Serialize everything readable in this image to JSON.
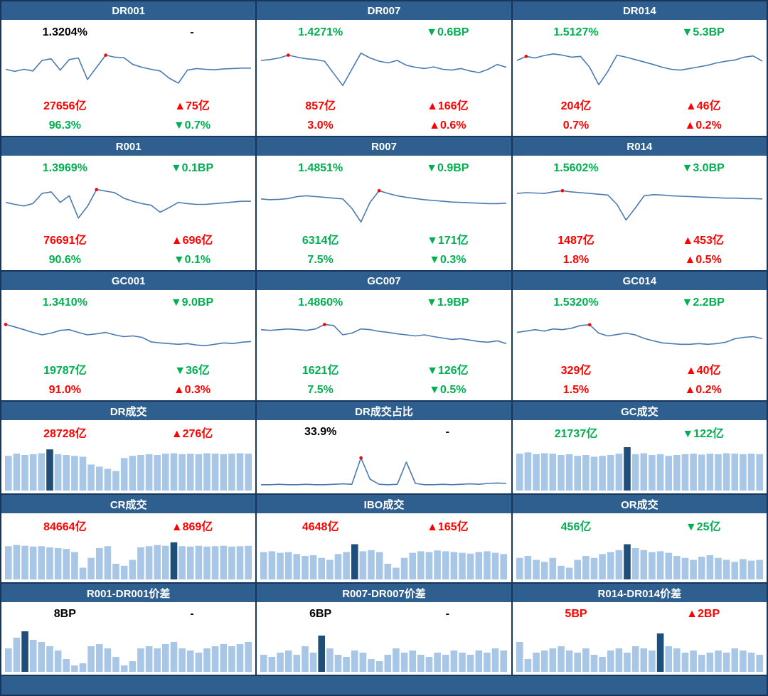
{
  "colors": {
    "header_bg": "#2E5F8F",
    "header_text": "#FFFFFF",
    "grid_line": "#16365C",
    "line": "#4A7AB0",
    "marker": "#FF0000",
    "bar": "#A8C6E6",
    "bar_highlight": "#1F4E79",
    "up_red": "#FF0000",
    "down_green": "#00B050"
  },
  "chart_data": [
    {
      "id": "dr001",
      "type": "line",
      "title": "DR001",
      "top_left": {
        "text": "1.3204%",
        "color": "black"
      },
      "top_right": {
        "text": "-",
        "color": "black"
      },
      "values": [
        0.5,
        0.45,
        0.5,
        0.46,
        0.72,
        0.76,
        0.48,
        0.74,
        0.78,
        0.25,
        0.55,
        0.85,
        0.8,
        0.79,
        0.62,
        0.55,
        0.5,
        0.46,
        0.28,
        0.16,
        0.48,
        0.52,
        0.5,
        0.49,
        0.51,
        0.52,
        0.53,
        0.53
      ],
      "marker_index": 11,
      "mid_left": {
        "text": "27656亿",
        "color": "red"
      },
      "mid_right": {
        "text": "▲75亿",
        "color": "red"
      },
      "bot_left": {
        "text": "96.3%",
        "color": "green"
      },
      "bot_right": {
        "text": "▼0.7%",
        "color": "green"
      }
    },
    {
      "id": "dr007",
      "type": "line",
      "title": "DR007",
      "top_left": {
        "text": "1.4271%",
        "color": "green"
      },
      "top_right": {
        "text": "▼0.6BP",
        "color": "green"
      },
      "values": [
        0.72,
        0.74,
        0.78,
        0.85,
        0.8,
        0.76,
        0.74,
        0.7,
        0.4,
        0.1,
        0.5,
        0.9,
        0.78,
        0.7,
        0.66,
        0.72,
        0.6,
        0.55,
        0.52,
        0.56,
        0.5,
        0.48,
        0.52,
        0.46,
        0.42,
        0.5,
        0.62,
        0.55
      ],
      "marker_index": 3,
      "mid_left": {
        "text": "857亿",
        "color": "red"
      },
      "mid_right": {
        "text": "▲166亿",
        "color": "red"
      },
      "bot_left": {
        "text": "3.0%",
        "color": "red"
      },
      "bot_right": {
        "text": "▲0.6%",
        "color": "red"
      }
    },
    {
      "id": "dr014",
      "type": "line",
      "title": "DR014",
      "top_left": {
        "text": "1.5127%",
        "color": "green"
      },
      "top_right": {
        "text": "▼5.3BP",
        "color": "green"
      },
      "values": [
        0.72,
        0.82,
        0.78,
        0.84,
        0.88,
        0.85,
        0.8,
        0.82,
        0.55,
        0.12,
        0.45,
        0.85,
        0.8,
        0.74,
        0.68,
        0.62,
        0.55,
        0.5,
        0.48,
        0.52,
        0.56,
        0.6,
        0.66,
        0.7,
        0.73,
        0.8,
        0.83,
        0.7
      ],
      "marker_index": 1,
      "mid_left": {
        "text": "204亿",
        "color": "red"
      },
      "mid_right": {
        "text": "▲46亿",
        "color": "red"
      },
      "bot_left": {
        "text": "0.7%",
        "color": "red"
      },
      "bot_right": {
        "text": "▲0.2%",
        "color": "red"
      }
    },
    {
      "id": "r001",
      "type": "line",
      "title": "R001",
      "top_left": {
        "text": "1.3969%",
        "color": "green"
      },
      "top_right": {
        "text": "▼0.1BP",
        "color": "green"
      },
      "values": [
        0.55,
        0.5,
        0.46,
        0.52,
        0.78,
        0.82,
        0.55,
        0.72,
        0.15,
        0.45,
        0.88,
        0.84,
        0.8,
        0.66,
        0.58,
        0.52,
        0.48,
        0.3,
        0.42,
        0.55,
        0.52,
        0.5,
        0.5,
        0.52,
        0.54,
        0.56,
        0.58,
        0.58
      ],
      "marker_index": 10,
      "mid_left": {
        "text": "76691亿",
        "color": "red"
      },
      "mid_right": {
        "text": "▲696亿",
        "color": "red"
      },
      "bot_left": {
        "text": "90.6%",
        "color": "green"
      },
      "bot_right": {
        "text": "▼0.1%",
        "color": "green"
      }
    },
    {
      "id": "r007",
      "type": "line",
      "title": "R007",
      "top_left": {
        "text": "1.4851%",
        "color": "green"
      },
      "top_right": {
        "text": "▼0.9BP",
        "color": "green"
      },
      "values": [
        0.64,
        0.62,
        0.63,
        0.65,
        0.7,
        0.72,
        0.7,
        0.68,
        0.66,
        0.64,
        0.4,
        0.05,
        0.55,
        0.85,
        0.78,
        0.72,
        0.68,
        0.65,
        0.62,
        0.6,
        0.58,
        0.56,
        0.55,
        0.54,
        0.53,
        0.52,
        0.52,
        0.53
      ],
      "marker_index": 13,
      "mid_left": {
        "text": "6314亿",
        "color": "green"
      },
      "mid_right": {
        "text": "▼171亿",
        "color": "green"
      },
      "bot_left": {
        "text": "7.5%",
        "color": "green"
      },
      "bot_right": {
        "text": "▼0.3%",
        "color": "green"
      }
    },
    {
      "id": "r014",
      "type": "line",
      "title": "R014",
      "top_left": {
        "text": "1.5602%",
        "color": "green"
      },
      "top_right": {
        "text": "▼3.0BP",
        "color": "green"
      },
      "values": [
        0.78,
        0.8,
        0.79,
        0.78,
        0.82,
        0.85,
        0.82,
        0.8,
        0.78,
        0.76,
        0.74,
        0.5,
        0.1,
        0.4,
        0.72,
        0.75,
        0.74,
        0.72,
        0.71,
        0.7,
        0.69,
        0.68,
        0.67,
        0.66,
        0.66,
        0.65,
        0.65,
        0.64
      ],
      "marker_index": 5,
      "mid_left": {
        "text": "1487亿",
        "color": "red"
      },
      "mid_right": {
        "text": "▲453亿",
        "color": "red"
      },
      "bot_left": {
        "text": "1.8%",
        "color": "red"
      },
      "bot_right": {
        "text": "▲0.5%",
        "color": "red"
      }
    },
    {
      "id": "gc001",
      "type": "line",
      "title": "GC001",
      "top_left": {
        "text": "1.3410%",
        "color": "green"
      },
      "top_right": {
        "text": "▼9.0BP",
        "color": "green"
      },
      "values": [
        0.85,
        0.78,
        0.7,
        0.62,
        0.55,
        0.6,
        0.68,
        0.7,
        0.62,
        0.55,
        0.58,
        0.62,
        0.55,
        0.5,
        0.52,
        0.48,
        0.35,
        0.32,
        0.3,
        0.28,
        0.3,
        0.26,
        0.24,
        0.28,
        0.32,
        0.3,
        0.34,
        0.36
      ],
      "marker_index": 0,
      "mid_left": {
        "text": "19787亿",
        "color": "green"
      },
      "mid_right": {
        "text": "▼36亿",
        "color": "green"
      },
      "bot_left": {
        "text": "91.0%",
        "color": "red"
      },
      "bot_right": {
        "text": "▲0.3%",
        "color": "red"
      }
    },
    {
      "id": "gc007",
      "type": "line",
      "title": "GC007",
      "top_left": {
        "text": "1.4860%",
        "color": "green"
      },
      "top_right": {
        "text": "▼1.9BP",
        "color": "green"
      },
      "values": [
        0.7,
        0.68,
        0.7,
        0.72,
        0.7,
        0.68,
        0.72,
        0.85,
        0.82,
        0.55,
        0.6,
        0.72,
        0.7,
        0.65,
        0.62,
        0.58,
        0.55,
        0.52,
        0.55,
        0.5,
        0.46,
        0.42,
        0.44,
        0.4,
        0.36,
        0.34,
        0.38,
        0.3
      ],
      "marker_index": 7,
      "mid_left": {
        "text": "1621亿",
        "color": "green"
      },
      "mid_right": {
        "text": "▼126亿",
        "color": "green"
      },
      "bot_left": {
        "text": "7.5%",
        "color": "green"
      },
      "bot_right": {
        "text": "▼0.5%",
        "color": "green"
      }
    },
    {
      "id": "gc014",
      "type": "line",
      "title": "GC014",
      "top_left": {
        "text": "1.5320%",
        "color": "green"
      },
      "top_right": {
        "text": "▼2.2BP",
        "color": "green"
      },
      "values": [
        0.62,
        0.66,
        0.7,
        0.66,
        0.72,
        0.7,
        0.74,
        0.82,
        0.84,
        0.6,
        0.52,
        0.56,
        0.6,
        0.55,
        0.45,
        0.38,
        0.32,
        0.3,
        0.28,
        0.28,
        0.3,
        0.28,
        0.3,
        0.34,
        0.44,
        0.48,
        0.5,
        0.44
      ],
      "marker_index": 8,
      "mid_left": {
        "text": "329亿",
        "color": "red"
      },
      "mid_right": {
        "text": "▲40亿",
        "color": "red"
      },
      "bot_left": {
        "text": "1.5%",
        "color": "red"
      },
      "bot_right": {
        "text": "▲0.2%",
        "color": "red"
      }
    },
    {
      "id": "dr-volume",
      "type": "bar",
      "title": "DR成交",
      "top_left": {
        "text": "28728亿",
        "color": "red"
      },
      "top_right": {
        "text": "▲276亿",
        "color": "red"
      },
      "values": [
        0.8,
        0.85,
        0.82,
        0.84,
        0.86,
        0.95,
        0.84,
        0.82,
        0.8,
        0.78,
        0.6,
        0.55,
        0.5,
        0.45,
        0.75,
        0.8,
        0.82,
        0.84,
        0.82,
        0.85,
        0.86,
        0.84,
        0.85,
        0.84,
        0.86,
        0.85,
        0.84,
        0.85,
        0.86,
        0.85
      ],
      "highlight_index": 5
    },
    {
      "id": "dr-volume-share",
      "type": "line",
      "title": "DR成交占比",
      "top_left": {
        "text": "33.9%",
        "color": "black"
      },
      "top_right": {
        "text": "-",
        "color": "black"
      },
      "values": [
        0.12,
        0.12,
        0.13,
        0.12,
        0.12,
        0.13,
        0.12,
        0.12,
        0.13,
        0.14,
        0.13,
        0.75,
        0.25,
        0.13,
        0.12,
        0.13,
        0.65,
        0.15,
        0.12,
        0.12,
        0.13,
        0.12,
        0.13,
        0.14,
        0.13,
        0.15,
        0.16,
        0.15
      ],
      "marker_index": 11
    },
    {
      "id": "gc-volume",
      "type": "bar",
      "title": "GC成交",
      "top_left": {
        "text": "21737亿",
        "color": "green"
      },
      "top_right": {
        "text": "▼122亿",
        "color": "green"
      },
      "values": [
        0.85,
        0.88,
        0.84,
        0.86,
        0.85,
        0.82,
        0.84,
        0.8,
        0.82,
        0.78,
        0.8,
        0.82,
        0.85,
        1.0,
        0.84,
        0.86,
        0.82,
        0.84,
        0.8,
        0.82,
        0.84,
        0.85,
        0.83,
        0.85,
        0.84,
        0.86,
        0.85,
        0.84,
        0.85,
        0.84
      ],
      "highlight_index": 13
    },
    {
      "id": "cr-volume",
      "type": "bar",
      "title": "CR成交",
      "top_left": {
        "text": "84664亿",
        "color": "red"
      },
      "top_right": {
        "text": "▲869亿",
        "color": "red"
      },
      "values": [
        0.85,
        0.88,
        0.86,
        0.84,
        0.85,
        0.82,
        0.8,
        0.78,
        0.7,
        0.3,
        0.55,
        0.8,
        0.85,
        0.4,
        0.35,
        0.5,
        0.82,
        0.85,
        0.88,
        0.86,
        0.95,
        0.85,
        0.84,
        0.86,
        0.84,
        0.85,
        0.86,
        0.84,
        0.85,
        0.86
      ],
      "highlight_index": 20
    },
    {
      "id": "ibo-volume",
      "type": "bar",
      "title": "IBO成交",
      "top_left": {
        "text": "4648亿",
        "color": "red"
      },
      "top_right": {
        "text": "▲165亿",
        "color": "red"
      },
      "values": [
        0.7,
        0.72,
        0.68,
        0.7,
        0.65,
        0.6,
        0.62,
        0.55,
        0.5,
        0.65,
        0.7,
        0.9,
        0.72,
        0.75,
        0.7,
        0.4,
        0.3,
        0.55,
        0.68,
        0.72,
        0.7,
        0.74,
        0.72,
        0.7,
        0.68,
        0.66,
        0.7,
        0.72,
        0.68,
        0.65
      ],
      "highlight_index": 11
    },
    {
      "id": "or-volume",
      "type": "bar",
      "title": "OR成交",
      "top_left": {
        "text": "456亿",
        "color": "green"
      },
      "top_right": {
        "text": "▼25亿",
        "color": "green"
      },
      "values": [
        0.55,
        0.6,
        0.5,
        0.45,
        0.55,
        0.35,
        0.3,
        0.5,
        0.6,
        0.55,
        0.65,
        0.7,
        0.75,
        0.9,
        0.8,
        0.75,
        0.7,
        0.72,
        0.68,
        0.6,
        0.55,
        0.5,
        0.58,
        0.62,
        0.55,
        0.5,
        0.45,
        0.52,
        0.48,
        0.5
      ],
      "highlight_index": 13
    },
    {
      "id": "r001-dr001-spread",
      "type": "bar",
      "title": "R001-DR001价差",
      "top_left": {
        "text": "8BP",
        "color": "black"
      },
      "top_right": {
        "text": "-",
        "color": "black"
      },
      "values": [
        0.55,
        0.8,
        0.95,
        0.75,
        0.7,
        0.6,
        0.5,
        0.3,
        0.15,
        0.2,
        0.6,
        0.65,
        0.55,
        0.35,
        0.15,
        0.25,
        0.55,
        0.6,
        0.55,
        0.65,
        0.7,
        0.55,
        0.5,
        0.45,
        0.55,
        0.6,
        0.65,
        0.6,
        0.65,
        0.7
      ],
      "highlight_index": 2
    },
    {
      "id": "r007-dr007-spread",
      "type": "bar",
      "title": "R007-DR007价差",
      "top_left": {
        "text": "6BP",
        "color": "black"
      },
      "top_right": {
        "text": "-",
        "color": "black"
      },
      "values": [
        0.4,
        0.35,
        0.45,
        0.5,
        0.4,
        0.6,
        0.45,
        0.85,
        0.55,
        0.4,
        0.35,
        0.5,
        0.45,
        0.3,
        0.25,
        0.4,
        0.55,
        0.45,
        0.5,
        0.4,
        0.35,
        0.45,
        0.4,
        0.5,
        0.45,
        0.4,
        0.5,
        0.45,
        0.55,
        0.5
      ],
      "highlight_index": 7
    },
    {
      "id": "r014-dr014-spread",
      "type": "bar",
      "title": "R014-DR014价差",
      "top_left": {
        "text": "5BP",
        "color": "red"
      },
      "top_right": {
        "text": "▲2BP",
        "color": "red"
      },
      "values": [
        0.7,
        0.3,
        0.45,
        0.5,
        0.55,
        0.6,
        0.5,
        0.45,
        0.55,
        0.4,
        0.35,
        0.5,
        0.55,
        0.45,
        0.6,
        0.55,
        0.5,
        0.9,
        0.6,
        0.55,
        0.45,
        0.5,
        0.4,
        0.45,
        0.5,
        0.45,
        0.55,
        0.5,
        0.45,
        0.4
      ],
      "highlight_index": 17
    }
  ]
}
